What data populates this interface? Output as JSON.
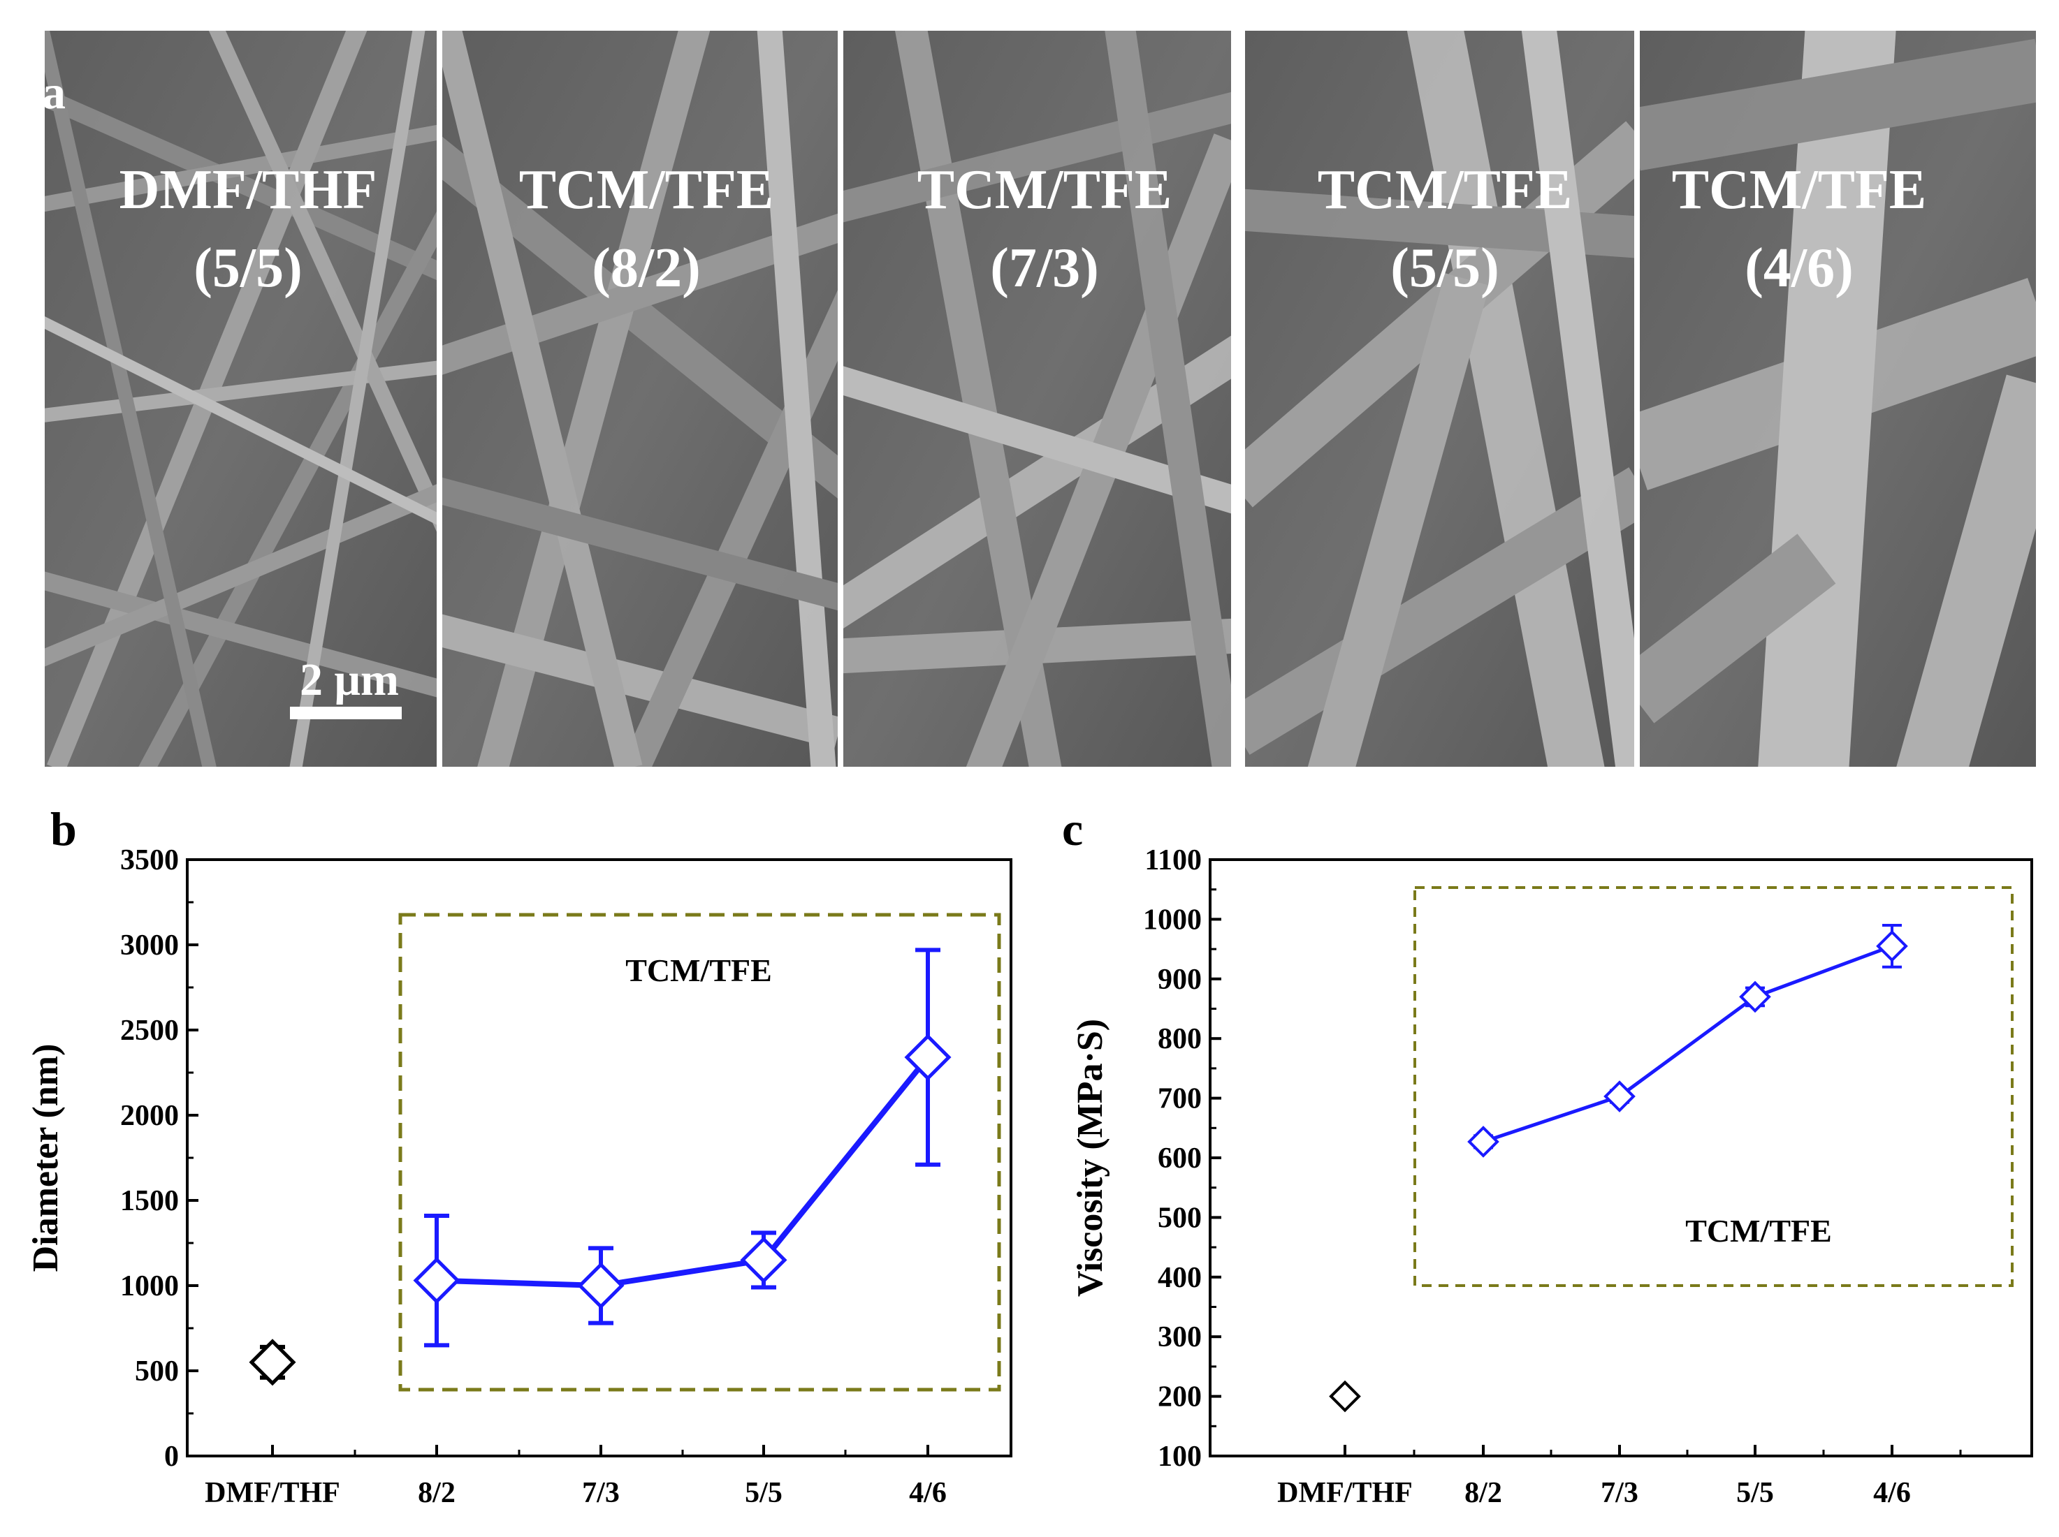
{
  "panel_a": {
    "label": "a",
    "scale_bar_label": "2 μm",
    "images": [
      {
        "solvent": "DMF/THF",
        "ratio": "(5/5)"
      },
      {
        "solvent": "TCM/TFE",
        "ratio": "(8/2)"
      },
      {
        "solvent": "TCM/TFE",
        "ratio": "(7/3)"
      },
      {
        "solvent": "TCM/TFE",
        "ratio": "(5/5)"
      },
      {
        "solvent": "TCM/TFE",
        "ratio": "(4/6)"
      }
    ]
  },
  "chart_data": [
    {
      "type": "line",
      "panel_label": "b",
      "ylabel": "Diameter (nm)",
      "xlabel": "",
      "ylim": [
        0,
        3500
      ],
      "yticks": [
        0,
        500,
        1000,
        1500,
        2000,
        2500,
        3000,
        3500
      ],
      "categories": [
        "DMF/THF",
        "8/2",
        "7/3",
        "5/5",
        "4/6"
      ],
      "box_label": "TCM/TFE",
      "series": [
        {
          "name": "DMF/THF",
          "color": "#000000",
          "points": [
            {
              "category": "DMF/THF",
              "y": 550,
              "err": 90
            }
          ]
        },
        {
          "name": "TCM/TFE",
          "color": "#1a1aff",
          "points": [
            {
              "category": "8/2",
              "y": 1030,
              "err": 380
            },
            {
              "category": "7/3",
              "y": 1000,
              "err": 220
            },
            {
              "category": "5/5",
              "y": 1150,
              "err": 160
            },
            {
              "category": "4/6",
              "y": 2340,
              "err": 630
            }
          ]
        }
      ]
    },
    {
      "type": "line",
      "panel_label": "c",
      "ylabel": "Viscosity (MPa·S)",
      "xlabel": "",
      "ylim": [
        100,
        1100
      ],
      "yticks": [
        100,
        200,
        300,
        400,
        500,
        600,
        700,
        800,
        900,
        1000,
        1100
      ],
      "categories": [
        "DMF/THF",
        "8/2",
        "7/3",
        "5/5",
        "4/6"
      ],
      "box_label": "TCM/TFE",
      "series": [
        {
          "name": "DMF/THF",
          "color": "#000000",
          "points": [
            {
              "category": "DMF/THF",
              "y": 200,
              "err": 8
            }
          ]
        },
        {
          "name": "TCM/TFE",
          "color": "#1a1aff",
          "points": [
            {
              "category": "8/2",
              "y": 627,
              "err": 10
            },
            {
              "category": "7/3",
              "y": 703,
              "err": 10
            },
            {
              "category": "5/5",
              "y": 870,
              "err": 15
            },
            {
              "category": "4/6",
              "y": 955,
              "err": 35
            }
          ]
        }
      ]
    }
  ]
}
